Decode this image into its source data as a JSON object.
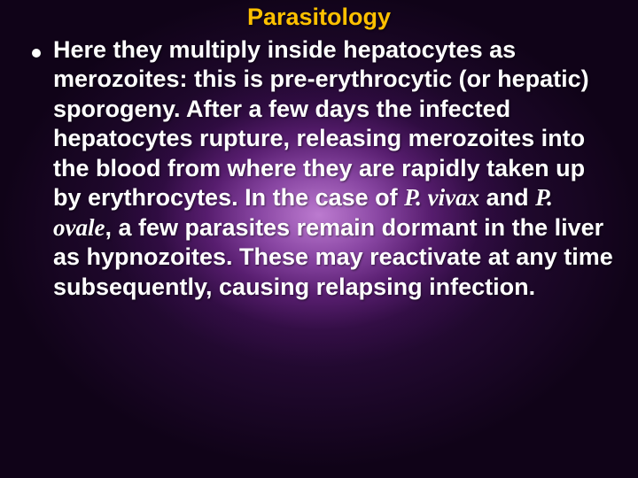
{
  "slide": {
    "title": "Parasitology",
    "title_color": "#ffc000",
    "title_fontsize": 27,
    "title_fontweight": "bold",
    "body_color": "#ffffff",
    "body_fontsize": 27,
    "body_fontweight": "bold",
    "body_lineheight": 1.24,
    "bullet_color": "#ffffff",
    "background": {
      "base_color": "#100318",
      "glow_center_color": "#d28ce6",
      "glow_mid_color": "#8c3cac",
      "glow_outer_color": "#3a0f55"
    },
    "bullets": [
      {
        "segments": [
          {
            "text": "Here they multiply inside hepatocytes as merozoites: this is pre-erythrocytic (or hepatic) sporogeny. After a few days the infected hepatocytes rupture, releasing merozoites into the blood from where they are rapidly taken up by erythrocytes. In the case of ",
            "italic": false
          },
          {
            "text": "P. vivax",
            "italic": true
          },
          {
            "text": " and ",
            "italic": false
          },
          {
            "text": "P. ovale",
            "italic": true
          },
          {
            "text": ", a few parasites remain dormant in the liver as hypnozoites. These may reactivate at any time subsequently, causing relapsing infection.",
            "italic": false
          }
        ]
      }
    ]
  }
}
